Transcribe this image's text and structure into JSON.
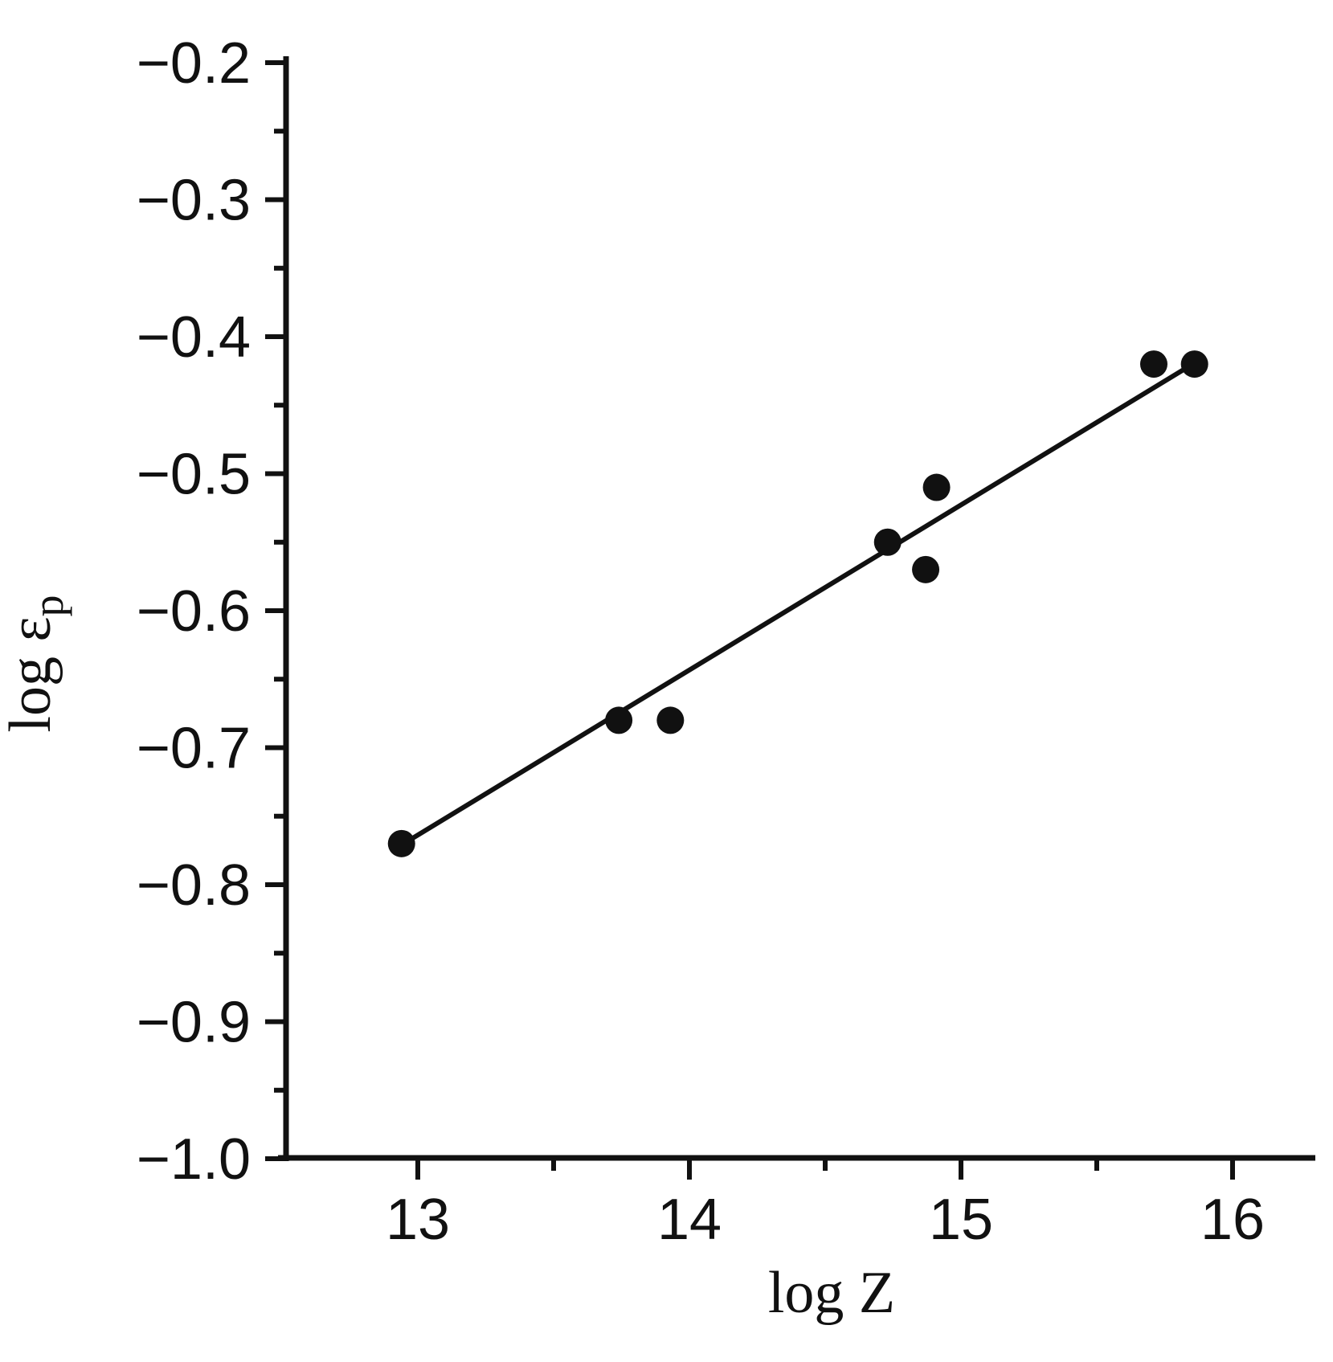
{
  "style": {
    "ink": "#111111",
    "background": "#ffffff"
  },
  "chart_data": {
    "type": "scatter",
    "title": "",
    "xlabel": "log Z",
    "ylabel": "log ε",
    "ylabel_subscript": "p",
    "xlim": [
      12.5,
      16.3
    ],
    "ylim": [
      -1.0,
      -0.2
    ],
    "grid": false,
    "legend": null,
    "x_tick_values": [
      13,
      14,
      15,
      16
    ],
    "x_tick_labels": [
      "13",
      "14",
      "15",
      "16"
    ],
    "x_minor_tick_values": [
      13.5,
      14.5,
      15.5
    ],
    "y_tick_values": [
      -0.2,
      -0.3,
      -0.4,
      -0.5,
      -0.6,
      -0.7,
      -0.8,
      -0.9,
      -1.0
    ],
    "y_tick_labels": [
      "−0.2",
      "−0.3",
      "−0.4",
      "−0.5",
      "−0.6",
      "−0.7",
      "−0.8",
      "−0.9",
      "−1.0"
    ],
    "y_minor_tick_values": [
      -0.25,
      -0.35,
      -0.45,
      -0.55,
      -0.65,
      -0.75,
      -0.85,
      -0.95
    ],
    "points": [
      {
        "x": 12.94,
        "y": -0.77
      },
      {
        "x": 13.74,
        "y": -0.68
      },
      {
        "x": 13.93,
        "y": -0.68
      },
      {
        "x": 14.73,
        "y": -0.55
      },
      {
        "x": 14.87,
        "y": -0.57
      },
      {
        "x": 14.91,
        "y": -0.51
      },
      {
        "x": 15.71,
        "y": -0.42
      },
      {
        "x": 15.86,
        "y": -0.42
      }
    ],
    "fit_line": {
      "x1": 12.94,
      "y1": -0.771,
      "x2": 15.82,
      "y2": -0.424
    }
  }
}
